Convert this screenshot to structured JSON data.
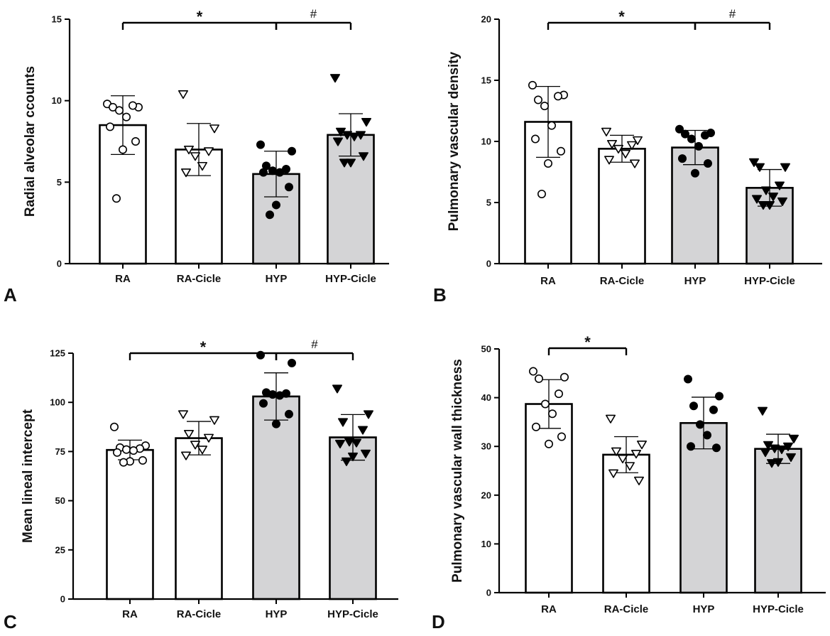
{
  "figure_title": "",
  "chart_data": [
    {
      "panel": "A",
      "type": "bar",
      "title": "",
      "xlabel": "",
      "ylabel": "Radial alveolar ccounts",
      "ylim": [
        0,
        15
      ],
      "yticks": [
        0,
        5,
        10,
        15
      ],
      "categories": [
        "RA",
        "RA-Cicle",
        "HYP",
        "HYP-Cicle"
      ],
      "fills": [
        "white",
        "white",
        "gray",
        "gray"
      ],
      "markers": [
        "open-circle",
        "open-triangle",
        "filled-circle",
        "filled-triangle"
      ],
      "values": [
        8.5,
        7.0,
        5.5,
        7.9
      ],
      "sd": [
        1.8,
        1.6,
        1.4,
        1.3
      ],
      "points": [
        [
          9.8,
          9.6,
          9.6,
          9.7,
          9.4,
          9.0,
          8.4,
          7.5,
          7.0,
          4.0
        ],
        [
          10.4,
          8.3,
          7.0,
          6.9,
          6.6,
          6.0,
          5.6
        ],
        [
          7.3,
          6.9,
          6.0,
          5.8,
          5.7,
          5.6,
          5.6,
          4.7,
          3.6,
          3.0
        ],
        [
          11.4,
          8.7,
          8.1,
          7.9,
          7.9,
          7.8,
          7.5,
          6.6,
          6.2,
          6.2
        ]
      ],
      "significance": [
        {
          "from": 0,
          "to": 2,
          "label": "*"
        },
        {
          "from": 2,
          "to": 3,
          "label": "#"
        }
      ]
    },
    {
      "panel": "B",
      "type": "bar",
      "title": "",
      "xlabel": "",
      "ylabel": "Pulmonary vascular density",
      "ylim": [
        0,
        20
      ],
      "yticks": [
        0,
        5,
        10,
        15,
        20
      ],
      "categories": [
        "RA",
        "RA-Cicle",
        "HYP",
        "HYP-Cicle"
      ],
      "fills": [
        "white",
        "white",
        "gray",
        "gray"
      ],
      "markers": [
        "open-circle",
        "open-triangle",
        "filled-circle",
        "filled-triangle"
      ],
      "values": [
        11.6,
        9.4,
        9.5,
        6.2
      ],
      "sd": [
        2.9,
        1.1,
        1.4,
        1.5
      ],
      "points": [
        [
          14.6,
          13.8,
          13.4,
          13.7,
          12.9,
          11.3,
          10.2,
          9.2,
          8.2,
          5.7
        ],
        [
          10.8,
          10.1,
          9.8,
          9.7,
          9.4,
          9.0,
          8.5,
          8.2
        ],
        [
          11.0,
          10.7,
          10.6,
          10.5,
          10.2,
          9.6,
          8.6,
          8.2,
          7.4
        ],
        [
          8.3,
          7.9,
          7.9,
          6.4,
          6.0,
          5.5,
          5.3,
          5.1,
          4.8,
          4.8
        ]
      ],
      "significance": [
        {
          "from": 0,
          "to": 2,
          "label": "*"
        },
        {
          "from": 2,
          "to": 3,
          "label": "#"
        }
      ]
    },
    {
      "panel": "C",
      "type": "bar",
      "title": "",
      "xlabel": "",
      "ylabel": "Mean lineal intercept",
      "ylim": [
        0,
        125
      ],
      "yticks": [
        0,
        25,
        50,
        75,
        100,
        125
      ],
      "categories": [
        "RA",
        "RA-Cicle",
        "HYP",
        "HYP-Cicle"
      ],
      "fills": [
        "white",
        "white",
        "gray",
        "gray"
      ],
      "markers": [
        "open-circle",
        "open-triangle",
        "filled-circle",
        "filled-triangle"
      ],
      "values": [
        75.8,
        81.8,
        103.0,
        82.2
      ],
      "sd": [
        5.0,
        8.5,
        12.0,
        11.6
      ],
      "points": [
        [
          87.5,
          78.0,
          77.0,
          76.5,
          76.0,
          75.5,
          74.5,
          70.5,
          70.0,
          69.5
        ],
        [
          94.0,
          91.0,
          84.0,
          82.0,
          78.5,
          76.0,
          73.0
        ],
        [
          124.0,
          120.0,
          105.0,
          104.5,
          104.0,
          103.5,
          99.5,
          94.0,
          89.0
        ],
        [
          107.0,
          94.0,
          90.0,
          86.0,
          80.0,
          79.5,
          79.0,
          74.0,
          72.5,
          70.0
        ]
      ],
      "significance": [
        {
          "from": 0,
          "to": 2,
          "label": "*"
        },
        {
          "from": 2,
          "to": 3,
          "label": "#"
        }
      ]
    },
    {
      "panel": "D",
      "type": "bar",
      "title": "",
      "xlabel": "",
      "ylabel": "Pulmonary vascular wall thickness",
      "ylim": [
        0,
        50
      ],
      "yticks": [
        0,
        10,
        20,
        30,
        40,
        50
      ],
      "categories": [
        "RA",
        "RA-Cicle",
        "HYP",
        "HYP-Cicle"
      ],
      "fills": [
        "white",
        "white",
        "gray",
        "gray"
      ],
      "markers": [
        "open-circle",
        "open-triangle",
        "filled-circle",
        "filled-triangle"
      ],
      "values": [
        38.7,
        28.3,
        34.8,
        29.5
      ],
      "sd": [
        5.0,
        3.7,
        5.3,
        3.0
      ],
      "points": [
        [
          45.4,
          44.2,
          43.9,
          40.8,
          38.7,
          36.7,
          34.0,
          32.0,
          30.5
        ],
        [
          35.7,
          30.4,
          29.0,
          28.5,
          27.5,
          26.0,
          24.5,
          23.0
        ],
        [
          43.8,
          40.3,
          38.3,
          37.5,
          34.5,
          32.3,
          30.0,
          29.7
        ],
        [
          37.3,
          31.6,
          30.3,
          30.0,
          29.6,
          29.4,
          28.8,
          27.8,
          26.8,
          26.6
        ]
      ],
      "significance": [
        {
          "from": 0,
          "to": 1,
          "label": "*"
        }
      ]
    }
  ]
}
